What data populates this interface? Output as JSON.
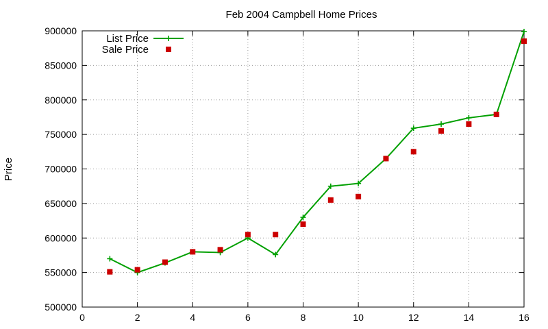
{
  "chart_data": {
    "type": "line",
    "title": "Feb 2004 Campbell Home Prices",
    "xlabel": "",
    "ylabel": "Price",
    "xlim": [
      0,
      16
    ],
    "ylim": [
      500000,
      900000
    ],
    "x_ticks": [
      0,
      2,
      4,
      6,
      8,
      10,
      12,
      14,
      16
    ],
    "y_ticks": [
      500000,
      550000,
      600000,
      650000,
      700000,
      750000,
      800000,
      850000,
      900000
    ],
    "grid": true,
    "legend_position": "top-left",
    "x": [
      1,
      2,
      3,
      4,
      5,
      6,
      7,
      8,
      9,
      10,
      11,
      12,
      13,
      14,
      15,
      16
    ],
    "series": [
      {
        "name": "List Price",
        "style": "linespoints",
        "marker": "plus",
        "color": "#00a000",
        "values": [
          570000,
          550000,
          564000,
          580000,
          579000,
          600000,
          576000,
          630000,
          675000,
          679000,
          715000,
          759000,
          765000,
          774000,
          779000,
          899000
        ]
      },
      {
        "name": "Sale Price",
        "style": "points",
        "marker": "square",
        "color": "#cc0000",
        "values": [
          551000,
          554000,
          565000,
          580000,
          583000,
          605000,
          605000,
          620000,
          655000,
          660000,
          715000,
          725000,
          755000,
          765000,
          779000,
          885000
        ]
      }
    ]
  }
}
